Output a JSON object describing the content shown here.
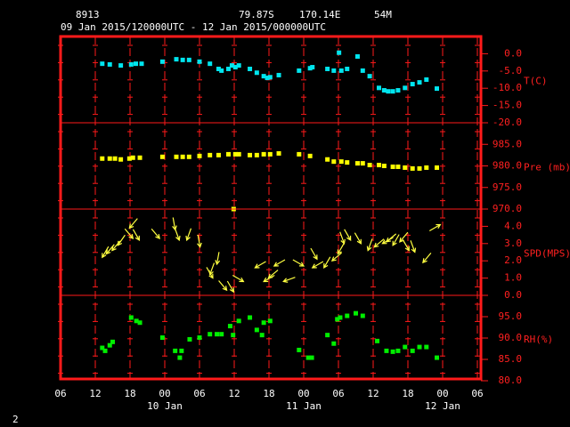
{
  "header": {
    "station": "8913",
    "latitude": "79.87S",
    "longitude": "170.14E",
    "elevation": "54M",
    "period": "09 Jan 2015/120000UTC - 12 Jan 2015/000000UTC",
    "page_number": "2"
  },
  "chart_data": [
    {
      "type": "scatter",
      "ylabel": "T(C)",
      "ylim": [
        -20,
        5
      ],
      "yticks": [
        {
          "value": 0,
          "label": "0.0"
        },
        {
          "value": -5,
          "label": "-5.0"
        },
        {
          "value": -10,
          "label": "-10.0"
        },
        {
          "value": -15,
          "label": "-15.0"
        },
        {
          "value": -20,
          "label": "-20.0"
        }
      ],
      "series": [
        {
          "name": "T",
          "color": "#00e5ee",
          "x": [
            13.2,
            14.5,
            16.4,
            18.2,
            19.0,
            20.0,
            23.6,
            26.0,
            27.1,
            28.2,
            30.0,
            31.8,
            33.3,
            33.8,
            35.0,
            35.6,
            36.2,
            36.8,
            38.7,
            39.9,
            41.1,
            41.7,
            42.2,
            43.7,
            47.2,
            49.1,
            49.5,
            52.1,
            53.2,
            54.1,
            54.5,
            55.5,
            57.3,
            58.2,
            59.4,
            61.0,
            61.9,
            62.6,
            63.4,
            64.3,
            65.5,
            66.8,
            68.0,
            69.2,
            71.0
          ],
          "values": [
            -2.9,
            -3.1,
            -3.4,
            -3.1,
            -2.9,
            -2.9,
            -2.3,
            -1.6,
            -1.8,
            -1.8,
            -2.3,
            -2.9,
            -4.4,
            -4.9,
            -4.4,
            -3.4,
            -3.9,
            -3.4,
            -4.4,
            -5.5,
            -6.5,
            -7.0,
            -6.8,
            -6.2,
            -4.9,
            -4.2,
            -3.9,
            -4.4,
            -4.9,
            0.3,
            -4.9,
            -4.4,
            -0.8,
            -4.9,
            -6.5,
            -9.9,
            -10.6,
            -10.9,
            -10.9,
            -10.6,
            -9.9,
            -8.8,
            -8.3,
            -7.5,
            -10.1
          ]
        }
      ]
    },
    {
      "type": "scatter",
      "ylabel": "Pre (mb)",
      "ylim": [
        970,
        990
      ],
      "yticks": [
        {
          "value": 985,
          "label": "985.0"
        },
        {
          "value": 980,
          "label": "980.0"
        },
        {
          "value": 975,
          "label": "975.0"
        },
        {
          "value": 970,
          "label": "970.0"
        }
      ],
      "series": [
        {
          "name": "Pre",
          "color": "#ffff00",
          "x": [
            13.2,
            14.5,
            15.4,
            16.4,
            17.9,
            18.5,
            19.7,
            23.6,
            26.0,
            27.1,
            28.2,
            30.0,
            31.8,
            33.3,
            35.0,
            35.9,
            36.2,
            36.8,
            38.7,
            39.9,
            41.1,
            42.2,
            43.7,
            47.2,
            49.1,
            52.1,
            53.2,
            54.5,
            55.5,
            57.3,
            58.2,
            59.4,
            61.0,
            61.9,
            63.4,
            64.3,
            65.5,
            66.8,
            68.0,
            69.2,
            71.0
          ],
          "values": [
            981.7,
            981.7,
            981.7,
            981.5,
            981.7,
            981.9,
            981.9,
            982.1,
            982.1,
            982.1,
            982.1,
            982.3,
            982.5,
            982.5,
            982.7,
            970.0,
            982.7,
            982.7,
            982.5,
            982.5,
            982.7,
            982.7,
            982.9,
            982.7,
            982.3,
            981.5,
            981.0,
            981.0,
            980.8,
            980.6,
            980.6,
            980.2,
            980.2,
            980.0,
            979.8,
            979.8,
            979.6,
            979.4,
            979.4,
            979.6,
            979.6
          ]
        }
      ]
    },
    {
      "type": "vector",
      "ylabel": "SPD(MPS)",
      "ylim": [
        0,
        5
      ],
      "yticks": [
        {
          "value": 4,
          "label": "4.0"
        },
        {
          "value": 3,
          "label": "3.0"
        },
        {
          "value": 2,
          "label": "2.0"
        },
        {
          "value": 1,
          "label": "1.0"
        },
        {
          "value": 0,
          "label": "0.0"
        }
      ],
      "series": [
        {
          "name": "SPD",
          "color": "#ffff40",
          "x": [
            13.2,
            13.9,
            14.9,
            15.9,
            17.9,
            18.5,
            19.6,
            23.1,
            25.8,
            26.5,
            27.8,
            30.1,
            31.8,
            32.3,
            33.0,
            34.7,
            35.9,
            37.6,
            39.6,
            41.1,
            41.9,
            42.9,
            44.5,
            48.0,
            49.5,
            50.3,
            51.5,
            52.9,
            53.9,
            55.0,
            56.1,
            57.9,
            59.1,
            60.2,
            61.6,
            62.3,
            63.4,
            64.6,
            66.2,
            67.2,
            68.6,
            71.6
          ],
          "values": [
            2.2,
            2.4,
            2.6,
            2.9,
            3.9,
            3.3,
            3.2,
            3.3,
            3.8,
            3.2,
            3.2,
            2.8,
            1.2,
            1.0,
            1.8,
            0.3,
            0.2,
            0.8,
            1.6,
            0.8,
            1.0,
            1.7,
            0.8,
            1.7,
            1.6,
            2.1,
            1.6,
            2.0,
            2.4,
            3.0,
            3.2,
            3.0,
            2.6,
            2.8,
            3.0,
            3.1,
            2.9,
            3.1,
            2.6,
            2.5,
            1.9,
            4.1
          ],
          "directions": [
            30,
            40,
            40,
            35,
            40,
            320,
            330,
            320,
            350,
            340,
            20,
            350,
            20,
            330,
            10,
            320,
            330,
            300,
            60,
            60,
            50,
            60,
            70,
            300,
            60,
            330,
            30,
            50,
            30,
            340,
            330,
            330,
            20,
            50,
            60,
            50,
            30,
            40,
            330,
            340,
            40,
            240
          ]
        }
      ]
    },
    {
      "type": "scatter",
      "ylabel": "RH(%)",
      "ylim": [
        80,
        100
      ],
      "yticks": [
        {
          "value": 95,
          "label": "95.0"
        },
        {
          "value": 90,
          "label": "90.0"
        },
        {
          "value": 85,
          "label": "85.0"
        },
        {
          "value": 80,
          "label": "80.0"
        }
      ],
      "xlim": [
        6,
        78
      ],
      "xticks": [
        {
          "value": 6,
          "label": "06"
        },
        12,
        18,
        {
          "value": 24,
          "label": "00"
        },
        {
          "value": 30,
          "label": "06"
        },
        {
          "value": 36,
          "label": "12"
        },
        {
          "value": 42,
          "label": "18"
        },
        {
          "value": 48,
          "label": "00"
        },
        {
          "value": 54,
          "label": "06"
        },
        {
          "value": 60,
          "label": "12"
        },
        {
          "value": 66,
          "label": "18"
        },
        {
          "value": 72,
          "label": "00"
        },
        {
          "value": 78,
          "label": "06"
        }
      ],
      "date_ticks": [
        {
          "value": 24,
          "label": "10 Jan"
        },
        {
          "value": 48,
          "label": "11 Jan"
        },
        {
          "value": 72,
          "label": "12 Jan"
        }
      ],
      "series": [
        {
          "name": "RH",
          "color": "#00ee00",
          "x": [
            13.2,
            13.7,
            14.5,
            15.0,
            18.2,
            19.1,
            19.7,
            23.6,
            25.8,
            26.6,
            26.9,
            28.3,
            30.0,
            31.8,
            33.0,
            33.8,
            35.3,
            35.8,
            36.8,
            38.7,
            39.9,
            40.8,
            41.1,
            42.2,
            47.2,
            48.8,
            49.4,
            52.1,
            53.2,
            53.8,
            54.3,
            55.5,
            57.0,
            58.2,
            60.7,
            62.3,
            63.4,
            64.3,
            65.5,
            66.8,
            68.0,
            69.2,
            71.0
          ],
          "values": [
            87.7,
            87.0,
            88.3,
            89.1,
            94.8,
            94.0,
            93.6,
            90.1,
            87.0,
            85.4,
            87.0,
            89.7,
            90.1,
            90.9,
            90.9,
            90.9,
            92.8,
            90.7,
            94.0,
            94.8,
            91.9,
            90.7,
            93.6,
            94.0,
            87.2,
            85.4,
            85.4,
            90.7,
            88.7,
            94.4,
            94.8,
            95.2,
            95.8,
            95.2,
            89.3,
            87.0,
            86.8,
            87.0,
            87.9,
            87.0,
            87.9,
            87.9,
            85.4
          ]
        }
      ]
    }
  ]
}
